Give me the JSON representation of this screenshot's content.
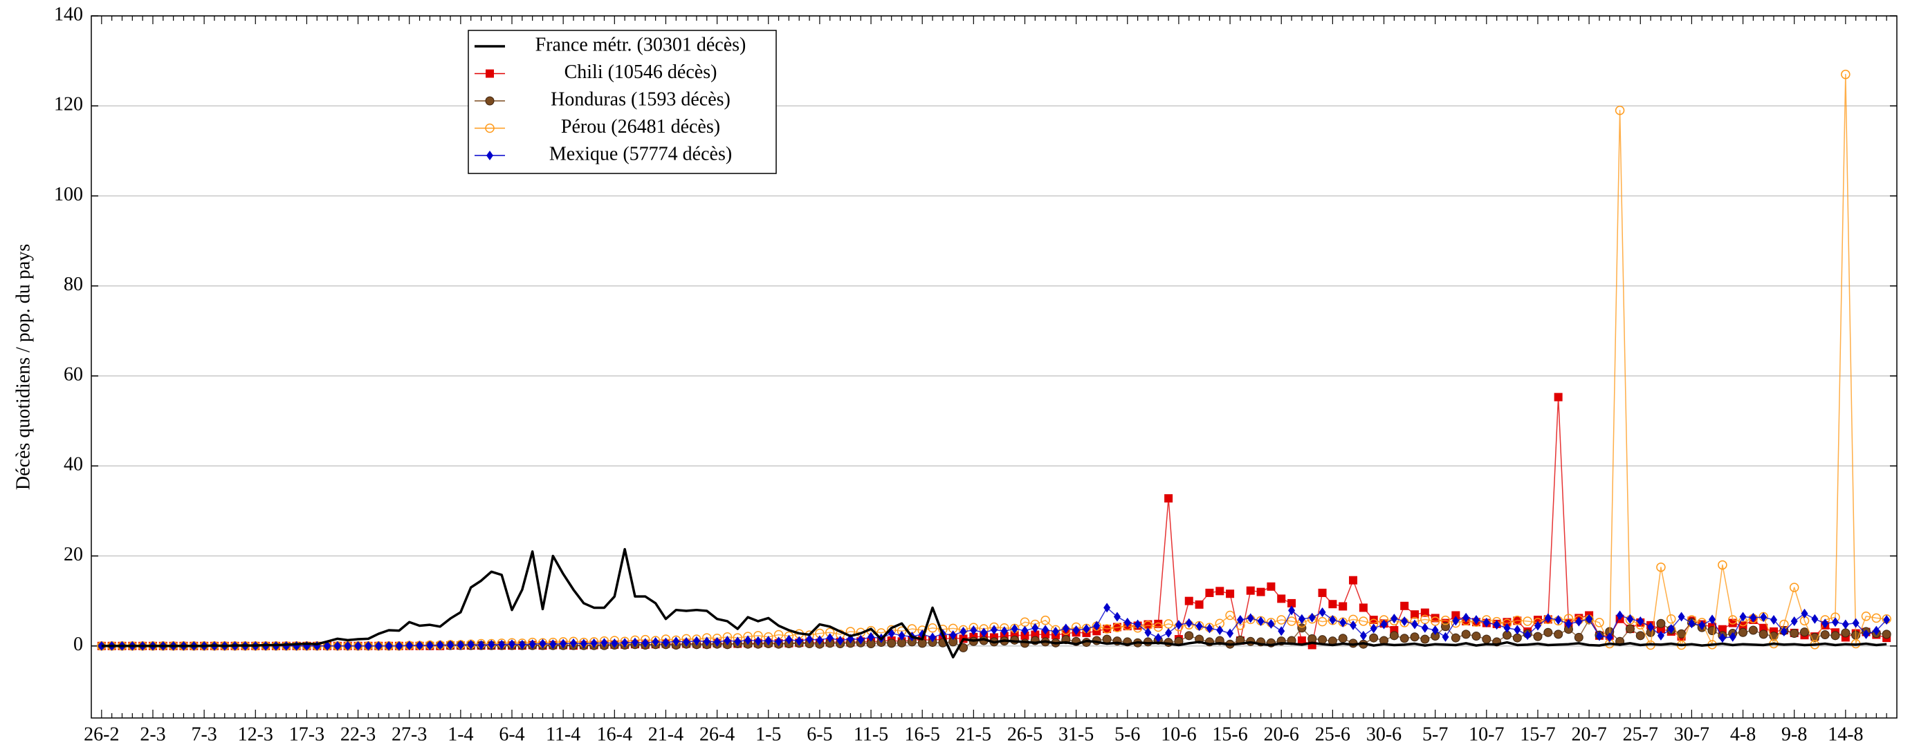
{
  "chart_data": {
    "type": "line",
    "y_label": "Décès quotidiens / pop. du pays",
    "categories": [
      "26-2",
      null,
      null,
      null,
      null,
      "2-3",
      null,
      null,
      null,
      null,
      "7-3",
      null,
      null,
      null,
      null,
      "12-3",
      null,
      null,
      null,
      null,
      "17-3",
      null,
      null,
      null,
      null,
      "22-3",
      null,
      null,
      null,
      null,
      "27-3",
      null,
      null,
      null,
      null,
      "1-4",
      null,
      null,
      null,
      null,
      "6-4",
      null,
      null,
      null,
      null,
      "11-4",
      null,
      null,
      null,
      null,
      "16-4",
      null,
      null,
      null,
      null,
      "21-4",
      null,
      null,
      null,
      null,
      "26-4",
      null,
      null,
      null,
      null,
      "1-5",
      null,
      null,
      null,
      null,
      "6-5",
      null,
      null,
      null,
      null,
      "11-5",
      null,
      null,
      null,
      null,
      "16-5",
      null,
      null,
      null,
      null,
      "21-5",
      null,
      null,
      null,
      null,
      "26-5",
      null,
      null,
      null,
      null,
      "31-5",
      null,
      null,
      null,
      null,
      "5-6",
      null,
      null,
      null,
      null,
      "10-6",
      null,
      null,
      null,
      null,
      "15-6",
      null,
      null,
      null,
      null,
      "20-6",
      null,
      null,
      null,
      null,
      "25-6",
      null,
      null,
      null,
      null,
      "30-6",
      null,
      null,
      null,
      null,
      "5-7",
      null,
      null,
      null,
      null,
      "10-7",
      null,
      null,
      null,
      null,
      "15-7",
      null,
      null,
      null,
      null,
      "20-7",
      null,
      null,
      null,
      null,
      "25-7",
      null,
      null,
      null,
      null,
      "30-7",
      null,
      null,
      null,
      null,
      "4-8",
      null,
      null,
      null,
      null,
      "9-8",
      null,
      null,
      null,
      null,
      "14-8",
      null,
      null,
      null,
      null
    ],
    "ylim": [
      -16,
      140
    ],
    "yticks": [
      0,
      20,
      40,
      60,
      80,
      100,
      120,
      140
    ],
    "grid": true,
    "legend": "upper left",
    "series": [
      {
        "name": "Chili (10546 décès)",
        "color": "#e00000",
        "marker": "square",
        "values": [
          0,
          0,
          0,
          0,
          0,
          0,
          0,
          0,
          0,
          0,
          0,
          0,
          0,
          0,
          0,
          0,
          0,
          0,
          0,
          0,
          0,
          0,
          0,
          0,
          0,
          0,
          0,
          0,
          0,
          0,
          0,
          0,
          0,
          0,
          0.1,
          0.1,
          0.1,
          0.1,
          0.1,
          0.1,
          0.1,
          0.1,
          0.2,
          0.1,
          0.2,
          0.2,
          0.1,
          0.2,
          0.2,
          0.3,
          0.3,
          0.3,
          0.4,
          0.3,
          0.4,
          0.5,
          0.4,
          0.5,
          0.5,
          0.4,
          0.6,
          0.5,
          0.5,
          0.6,
          0.6,
          0.7,
          0.6,
          0.6,
          0.7,
          0.8,
          0.7,
          0.8,
          0.9,
          0.8,
          1.0,
          0.9,
          1.1,
          1.2,
          1.0,
          1.3,
          1.4,
          1.3,
          1.5,
          1.8,
          1.6,
          2.0,
          2.1,
          1.9,
          2.2,
          2.4,
          2.3,
          2.5,
          2.6,
          2.4,
          2.8,
          3.0,
          2.9,
          3.3,
          3.8,
          4.2,
          4.4,
          4.5,
          4.8,
          4.9,
          32.8,
          1.5,
          10,
          9.2,
          11.8,
          12.2,
          11.6,
          1.2,
          12.3,
          12,
          13.2,
          10.5,
          9.5,
          1.2,
          0.2,
          11.8,
          9.3,
          8.8,
          14.6,
          8.5,
          5.8,
          5.0,
          3.5,
          8.9,
          7.0,
          7.4,
          6.2,
          5.1,
          6.8,
          5.5,
          5.3,
          5.1,
          4.9,
          5.3,
          5.6,
          3.2,
          5.8,
          5.9,
          55.3,
          5.0,
          6.2,
          6.8,
          2.3,
          2.3,
          6.0,
          3.8,
          5.2,
          4.6,
          3.8,
          3.2,
          2.1,
          5.6,
          4.8,
          4.2,
          3.7,
          5.1,
          4.5,
          5.8,
          4.0,
          3.2,
          3.5,
          2.9,
          2.4,
          2.1,
          4.6,
          3.0,
          1.9,
          2.8,
          3.1,
          2.5,
          1.8
        ]
      },
      {
        "name": "Honduras (1593 décès)",
        "color": "#7a4a1f",
        "marker": "circle",
        "values": [
          0,
          0,
          0,
          0,
          0,
          0,
          0,
          0,
          0,
          0,
          0,
          0,
          0,
          0,
          0,
          0,
          0,
          0,
          0,
          0,
          0,
          0,
          0,
          0,
          0,
          0,
          0,
          0,
          0,
          0,
          0.1,
          0.1,
          0.1,
          0.1,
          0.1,
          0.1,
          0.1,
          0.1,
          0.1,
          0.1,
          0.1,
          0.1,
          0.1,
          0.1,
          0.1,
          0.1,
          0.1,
          0.1,
          0.1,
          0.1,
          0.2,
          0.2,
          0.3,
          0.2,
          0.3,
          0.3,
          0.2,
          0.4,
          0.3,
          0.3,
          0.4,
          0.3,
          0.5,
          0.4,
          0.4,
          0.5,
          0.4,
          0.5,
          0.6,
          0.5,
          0.4,
          0.6,
          0.5,
          0.6,
          0.7,
          0.5,
          0.8,
          0.6,
          0.7,
          0.9,
          0.6,
          0.8,
          0.7,
          0.9,
          -0.4,
          1.0,
          1.2,
          0.9,
          1.1,
          1.3,
          0.6,
          1.2,
          0.9,
          0.7,
          1.4,
          1.0,
          0.8,
          1.2,
          1.5,
          1.1,
          0.9,
          0.7,
          0.9,
          1.3,
          0.8,
          1.0,
          2.3,
          1.5,
          0.9,
          1.2,
          0.4,
          1.3,
          1.0,
          0.9,
          0.7,
          1.1,
          1.2,
          4.0,
          1.6,
          1.4,
          1.1,
          1.7,
          0.6,
          0.4,
          1.8,
          1.2,
          2.3,
          1.7,
          2.0,
          1.5,
          2.2,
          4.3,
          1.8,
          2.6,
          2.2,
          1.5,
          0.9,
          2.4,
          1.8,
          2.7,
          2.1,
          3.0,
          2.6,
          3.7,
          1.9,
          5.8,
          2.4,
          3.2,
          1.0,
          3.8,
          2.3,
          3.0,
          5.0,
          3.6,
          2.7,
          5.2,
          4.1,
          3.4,
          2.3,
          2.8,
          3.0,
          3.5,
          2.6,
          2.2,
          3.4,
          2.8,
          3.1,
          1.9,
          2.5,
          2.3,
          2.9,
          2.4,
          3.2,
          2.8,
          2.6
        ]
      },
      {
        "name": "Pérou (26481 décès)",
        "color": "#ff9a1a",
        "marker": "circle-open",
        "values": [
          0,
          0,
          0,
          0,
          0,
          0,
          0,
          0,
          0,
          0,
          0,
          0,
          0,
          0,
          0,
          0,
          0,
          0,
          0,
          0,
          0,
          0,
          0,
          0,
          0,
          0,
          0,
          0,
          0,
          0,
          0.1,
          0.1,
          0.2,
          0.2,
          0.3,
          0.3,
          0.4,
          0.5,
          0.5,
          0.6,
          0.7,
          0.6,
          0.8,
          0.7,
          0.8,
          0.9,
          1.0,
          0.8,
          0.9,
          1.1,
          1.2,
          1.0,
          1.3,
          1.4,
          1.2,
          1.5,
          1.3,
          1.6,
          1.5,
          1.8,
          1.7,
          2.0,
          1.8,
          2.1,
          2.3,
          2.0,
          2.5,
          2.2,
          2.7,
          2.4,
          2.8,
          3.0,
          2.6,
          3.2,
          3.0,
          3.4,
          2.9,
          3.6,
          3.3,
          3.8,
          3.5,
          4.0,
          3.7,
          3.9,
          3.6,
          4.1,
          3.8,
          4.2,
          4.0,
          3.9,
          5.3,
          4.8,
          5.7,
          3.6,
          3.5,
          4.2,
          3.9,
          4.4,
          3.8,
          4.1,
          4.5,
          4.0,
          4.6,
          4.2,
          4.9,
          4.3,
          4.7,
          4.5,
          4.1,
          5.0,
          6.8,
          4.6,
          5.9,
          5.6,
          5.2,
          5.8,
          5.5,
          5.1,
          6.0,
          5.4,
          5.7,
          5.3,
          5.9,
          5.5,
          5.0,
          5.8,
          5.6,
          5.2,
          5.4,
          5.9,
          5.5,
          5.7,
          5.1,
          5.6,
          5.3,
          5.8,
          5.4,
          5.0,
          5.7,
          5.5,
          5.2,
          5.9,
          5.6,
          6.1,
          5.8,
          5.9,
          5.2,
          0.5,
          119,
          5.8,
          4.7,
          0.2,
          17.5,
          6.0,
          0.2,
          5.8,
          5.2,
          0.3,
          18.0,
          5.8,
          5.4,
          6.1,
          6.5,
          0.5,
          4.8,
          13.0,
          5.6,
          0.3,
          5.8,
          6.4,
          127,
          0.5,
          6.6,
          6.2,
          6.0
        ]
      },
      {
        "name": "Mexique (57774 décès)",
        "color": "#0000cc",
        "marker": "diamond",
        "values": [
          0,
          0,
          0,
          0,
          0,
          0,
          0,
          0,
          0,
          0,
          0,
          0,
          0,
          0,
          0,
          0,
          0,
          0,
          0,
          0,
          0,
          0,
          0,
          0,
          0,
          0,
          0,
          0,
          0,
          0,
          0.1,
          0.1,
          0.1,
          0.2,
          0.2,
          0.2,
          0.3,
          0.2,
          0.3,
          0.3,
          0.4,
          0.3,
          0.4,
          0.5,
          0.4,
          0.5,
          0.6,
          0.5,
          0.6,
          0.7,
          0.6,
          0.7,
          0.8,
          0.7,
          0.9,
          0.8,
          1.0,
          0.9,
          1.1,
          1.0,
          0.9,
          1.2,
          1.0,
          1.3,
          1.1,
          1.2,
          1.0,
          1.4,
          1.1,
          1.5,
          1.3,
          1.8,
          1.2,
          1.6,
          1.4,
          2.0,
          1.7,
          2.8,
          2.3,
          2.1,
          2.6,
          1.9,
          2.7,
          2.4,
          3.2,
          3.5,
          3.0,
          3.6,
          3.3,
          3.8,
          3.4,
          4.0,
          3.6,
          3.2,
          3.9,
          3.5,
          3.8,
          4.5,
          8.5,
          6.5,
          5.2,
          4.8,
          3.0,
          1.8,
          2.9,
          4.7,
          5.1,
          4.4,
          3.9,
          3.5,
          2.8,
          5.8,
          6.2,
          5.5,
          4.9,
          3.3,
          7.9,
          6.0,
          6.3,
          7.5,
          5.8,
          5.2,
          4.6,
          2.3,
          3.9,
          4.8,
          6.1,
          5.5,
          4.8,
          4.0,
          3.5,
          2.0,
          5.6,
          6.3,
          5.8,
          5.2,
          4.7,
          4.0,
          3.6,
          2.4,
          4.5,
          6.2,
          5.8,
          4.9,
          5.4,
          6.0,
          2.2,
          1.9,
          6.8,
          6.0,
          5.5,
          4.2,
          2.3,
          3.8,
          6.5,
          5.0,
          4.6,
          5.9,
          1.8,
          2.0,
          6.5,
          6.3,
          6.4,
          5.8,
          3.2,
          5.5,
          7.2,
          6.0,
          5.0,
          5.3,
          4.8,
          5.1,
          2.6,
          3.4,
          5.8
        ]
      },
      {
        "name": "France métr. (30301 décès)",
        "color": "#000000",
        "marker": null,
        "values": [
          0,
          0,
          0,
          0,
          0,
          0,
          0,
          0,
          0,
          0,
          0,
          0.1,
          0,
          0.1,
          0.1,
          0.1,
          0.2,
          0.2,
          0.3,
          0.4,
          0.5,
          0.4,
          1.0,
          1.6,
          1.3,
          1.5,
          1.6,
          2.7,
          3.5,
          3.4,
          5.3,
          4.5,
          4.7,
          4.3,
          6.1,
          7.5,
          13,
          14.5,
          16.5,
          15.8,
          8,
          12.5,
          21,
          8.2,
          20,
          16,
          12.5,
          9.5,
          8.5,
          8.5,
          11,
          21.5,
          11,
          11,
          9.5,
          6,
          8,
          7.8,
          8,
          7.8,
          6,
          5.5,
          3.8,
          6.4,
          5.5,
          6.2,
          4.5,
          3.5,
          2.8,
          2.5,
          4.8,
          4.3,
          3.2,
          2.2,
          2.8,
          3.8,
          1.5,
          4,
          5,
          2,
          1.5,
          8.5,
          2.5,
          -2.5,
          1.5,
          1.2,
          1.5,
          0.8,
          1.2,
          1,
          0.9,
          0.7,
          1.0,
          0.6,
          0.8,
          0.4,
          1.1,
          0.9,
          0.5,
          0.7,
          0.3,
          0.8,
          0.6,
          0.7,
          0.5,
          0.2,
          0.6,
          0.9,
          0.4,
          0.6,
          0.3,
          0.5,
          0.8,
          0.4,
          0.2,
          0.6,
          0.5,
          0.3,
          0.7,
          0.4,
          0.2,
          0.5,
          0.3,
          0.6,
          0.1,
          0.4,
          0.2,
          0.3,
          0.5,
          0.1,
          0.4,
          0.3,
          0.2,
          0.6,
          0.1,
          0.4,
          0.3,
          0.8,
          0.2,
          0.3,
          0.5,
          0.2,
          0.3,
          0.4,
          0.6,
          0.2,
          0.1,
          0.5,
          0.3,
          0.6,
          0.2,
          0.4,
          0.3,
          0.5,
          0.2,
          0.4,
          0.1,
          0.3,
          0.5,
          0.2,
          0.4,
          0.3,
          0.2,
          0.5,
          0.3,
          0.4,
          0.2,
          0.3,
          0.5,
          0.2,
          0.4,
          0.3,
          0.5,
          0.2,
          0.4
        ]
      }
    ]
  }
}
